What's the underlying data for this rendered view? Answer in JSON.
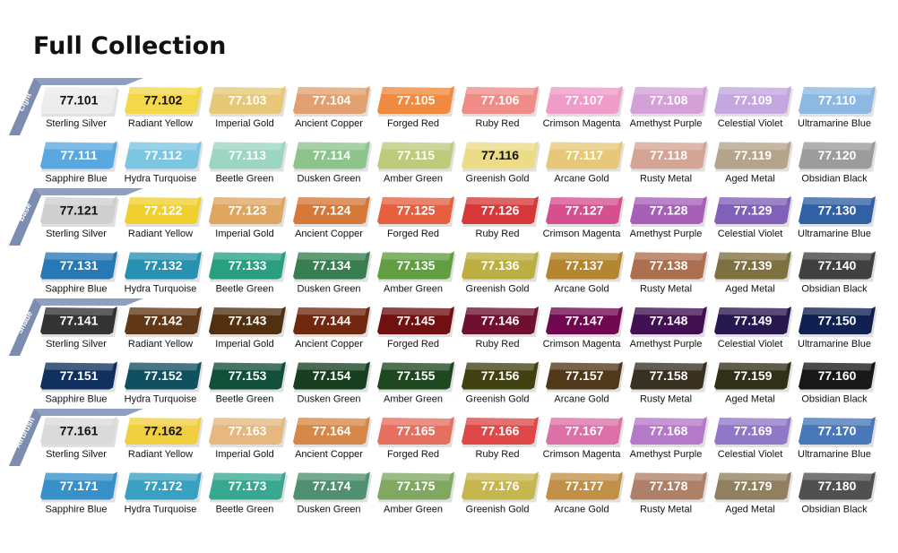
{
  "title": "Full Collection",
  "groups": [
    {
      "label": "Light",
      "rows": [
        [
          {
            "code": "77.101",
            "name": "Sterling Silver",
            "color": "#ececec"
          },
          {
            "code": "77.102",
            "name": "Radiant Yellow",
            "color": "#f3d84a"
          },
          {
            "code": "77.103",
            "name": "Imperial Gold",
            "color": "#e6c878"
          },
          {
            "code": "77.104",
            "name": "Ancient Copper",
            "color": "#e2a070"
          },
          {
            "code": "77.105",
            "name": "Forged Red",
            "color": "#ef8a3e"
          },
          {
            "code": "77.106",
            "name": "Ruby Red",
            "color": "#ef8c88"
          },
          {
            "code": "77.107",
            "name": "Crimson Magenta",
            "color": "#ef9cc8"
          },
          {
            "code": "77.108",
            "name": "Amethyst Purple",
            "color": "#d5a0d8"
          },
          {
            "code": "77.109",
            "name": "Celestial Violet",
            "color": "#c4a6e0"
          },
          {
            "code": "77.110",
            "name": "Ultramarine Blue",
            "color": "#8cb8e2"
          }
        ],
        [
          {
            "code": "77.111",
            "name": "Sapphire Blue",
            "color": "#5aa8e0"
          },
          {
            "code": "77.112",
            "name": "Hydra Turquoise",
            "color": "#7cc6e2"
          },
          {
            "code": "77.113",
            "name": "Beetle Green",
            "color": "#9cd6c0"
          },
          {
            "code": "77.114",
            "name": "Dusken Green",
            "color": "#8cc48c"
          },
          {
            "code": "77.115",
            "name": "Amber Green",
            "color": "#bccc7c"
          },
          {
            "code": "77.116",
            "name": "Greenish Gold",
            "color": "#ecdc88"
          },
          {
            "code": "77.117",
            "name": "Arcane Gold",
            "color": "#e6c878"
          },
          {
            "code": "77.118",
            "name": "Rusty Metal",
            "color": "#d4a494"
          },
          {
            "code": "77.119",
            "name": "Aged Metal",
            "color": "#b4a48c"
          },
          {
            "code": "77.120",
            "name": "Obsidian Black",
            "color": "#9c9c9c"
          }
        ]
      ]
    },
    {
      "label": "Base",
      "rows": [
        [
          {
            "code": "77.121",
            "name": "Sterling Silver",
            "color": "#cfcfcf"
          },
          {
            "code": "77.122",
            "name": "Radiant Yellow",
            "color": "#f0d030"
          },
          {
            "code": "77.123",
            "name": "Imperial Gold",
            "color": "#dea660"
          },
          {
            "code": "77.124",
            "name": "Ancient Copper",
            "color": "#d67838"
          },
          {
            "code": "77.125",
            "name": "Forged Red",
            "color": "#e66040"
          },
          {
            "code": "77.126",
            "name": "Ruby Red",
            "color": "#d63838"
          },
          {
            "code": "77.127",
            "name": "Crimson Magenta",
            "color": "#d65090"
          },
          {
            "code": "77.128",
            "name": "Amethyst Purple",
            "color": "#a660b8"
          },
          {
            "code": "77.129",
            "name": "Celestial Violet",
            "color": "#8060b8"
          },
          {
            "code": "77.130",
            "name": "Ultramarine Blue",
            "color": "#3060a6"
          }
        ],
        [
          {
            "code": "77.131",
            "name": "Sapphire Blue",
            "color": "#2878b6"
          },
          {
            "code": "77.132",
            "name": "Hydra Turquoise",
            "color": "#2890b0"
          },
          {
            "code": "77.133",
            "name": "Beetle Green",
            "color": "#28a080"
          },
          {
            "code": "77.134",
            "name": "Dusken Green",
            "color": "#387e50"
          },
          {
            "code": "77.135",
            "name": "Amber Green",
            "color": "#609e40"
          },
          {
            "code": "77.136",
            "name": "Greenish Gold",
            "color": "#bcae40"
          },
          {
            "code": "77.137",
            "name": "Arcane Gold",
            "color": "#b48630"
          },
          {
            "code": "77.138",
            "name": "Rusty Metal",
            "color": "#ac7050"
          },
          {
            "code": "77.139",
            "name": "Aged Metal",
            "color": "#7e7040"
          },
          {
            "code": "77.140",
            "name": "Obsidian Black",
            "color": "#404040"
          }
        ]
      ]
    },
    {
      "label": "Shade",
      "rows": [
        [
          {
            "code": "77.141",
            "name": "Sterling Silver",
            "color": "#333333"
          },
          {
            "code": "77.142",
            "name": "Radiant Yellow",
            "color": "#603818"
          },
          {
            "code": "77.143",
            "name": "Imperial Gold",
            "color": "#503010"
          },
          {
            "code": "77.144",
            "name": "Ancient Copper",
            "color": "#702810"
          },
          {
            "code": "77.145",
            "name": "Forged Red",
            "color": "#701010"
          },
          {
            "code": "77.146",
            "name": "Ruby Red",
            "color": "#701030"
          },
          {
            "code": "77.147",
            "name": "Crimson Magenta",
            "color": "#700850"
          },
          {
            "code": "77.148",
            "name": "Amethyst Purple",
            "color": "#401050"
          },
          {
            "code": "77.149",
            "name": "Celestial Violet",
            "color": "#281850"
          },
          {
            "code": "77.150",
            "name": "Ultramarine Blue",
            "color": "#102050"
          }
        ],
        [
          {
            "code": "77.151",
            "name": "Sapphire Blue",
            "color": "#103060"
          },
          {
            "code": "77.152",
            "name": "Hydra Turquoise",
            "color": "#105060"
          },
          {
            "code": "77.153",
            "name": "Beetle Green",
            "color": "#105038"
          },
          {
            "code": "77.154",
            "name": "Dusken Green",
            "color": "#184020"
          },
          {
            "code": "77.155",
            "name": "Amber Green",
            "color": "#204820"
          },
          {
            "code": "77.156",
            "name": "Greenish Gold",
            "color": "#404010"
          },
          {
            "code": "77.157",
            "name": "Arcane Gold",
            "color": "#503818"
          },
          {
            "code": "77.158",
            "name": "Rusty Metal",
            "color": "#383020"
          },
          {
            "code": "77.159",
            "name": "Aged Metal",
            "color": "#303018"
          },
          {
            "code": "77.160",
            "name": "Obsidian Black",
            "color": "#181818"
          }
        ]
      ]
    },
    {
      "label": "Airbrush",
      "rows": [
        [
          {
            "code": "77.161",
            "name": "Sterling Silver",
            "color": "#dadada"
          },
          {
            "code": "77.162",
            "name": "Radiant Yellow",
            "color": "#f0d040"
          },
          {
            "code": "77.163",
            "name": "Imperial Gold",
            "color": "#e6b880"
          },
          {
            "code": "77.164",
            "name": "Ancient Copper",
            "color": "#d68848"
          },
          {
            "code": "77.165",
            "name": "Forged Red",
            "color": "#e67060"
          },
          {
            "code": "77.166",
            "name": "Ruby Red",
            "color": "#de4848"
          },
          {
            "code": "77.167",
            "name": "Crimson Magenta",
            "color": "#de70a8"
          },
          {
            "code": "77.168",
            "name": "Amethyst Purple",
            "color": "#b678c8"
          },
          {
            "code": "77.169",
            "name": "Celestial Violet",
            "color": "#9078c8"
          },
          {
            "code": "77.170",
            "name": "Ultramarine Blue",
            "color": "#4878b8"
          }
        ],
        [
          {
            "code": "77.171",
            "name": "Sapphire Blue",
            "color": "#3890c8"
          },
          {
            "code": "77.172",
            "name": "Hydra Turquoise",
            "color": "#38a0c0"
          },
          {
            "code": "77.173",
            "name": "Beetle Green",
            "color": "#38a890"
          },
          {
            "code": "77.174",
            "name": "Dusken Green",
            "color": "#509070"
          },
          {
            "code": "77.175",
            "name": "Amber Green",
            "color": "#80a860"
          },
          {
            "code": "77.176",
            "name": "Greenish Gold",
            "color": "#c6b650"
          },
          {
            "code": "77.177",
            "name": "Arcane Gold",
            "color": "#c09048"
          },
          {
            "code": "77.178",
            "name": "Rusty Metal",
            "color": "#ae8068"
          },
          {
            "code": "77.179",
            "name": "Aged Metal",
            "color": "#908060"
          },
          {
            "code": "77.180",
            "name": "Obsidian Black",
            "color": "#505050"
          }
        ]
      ]
    }
  ]
}
